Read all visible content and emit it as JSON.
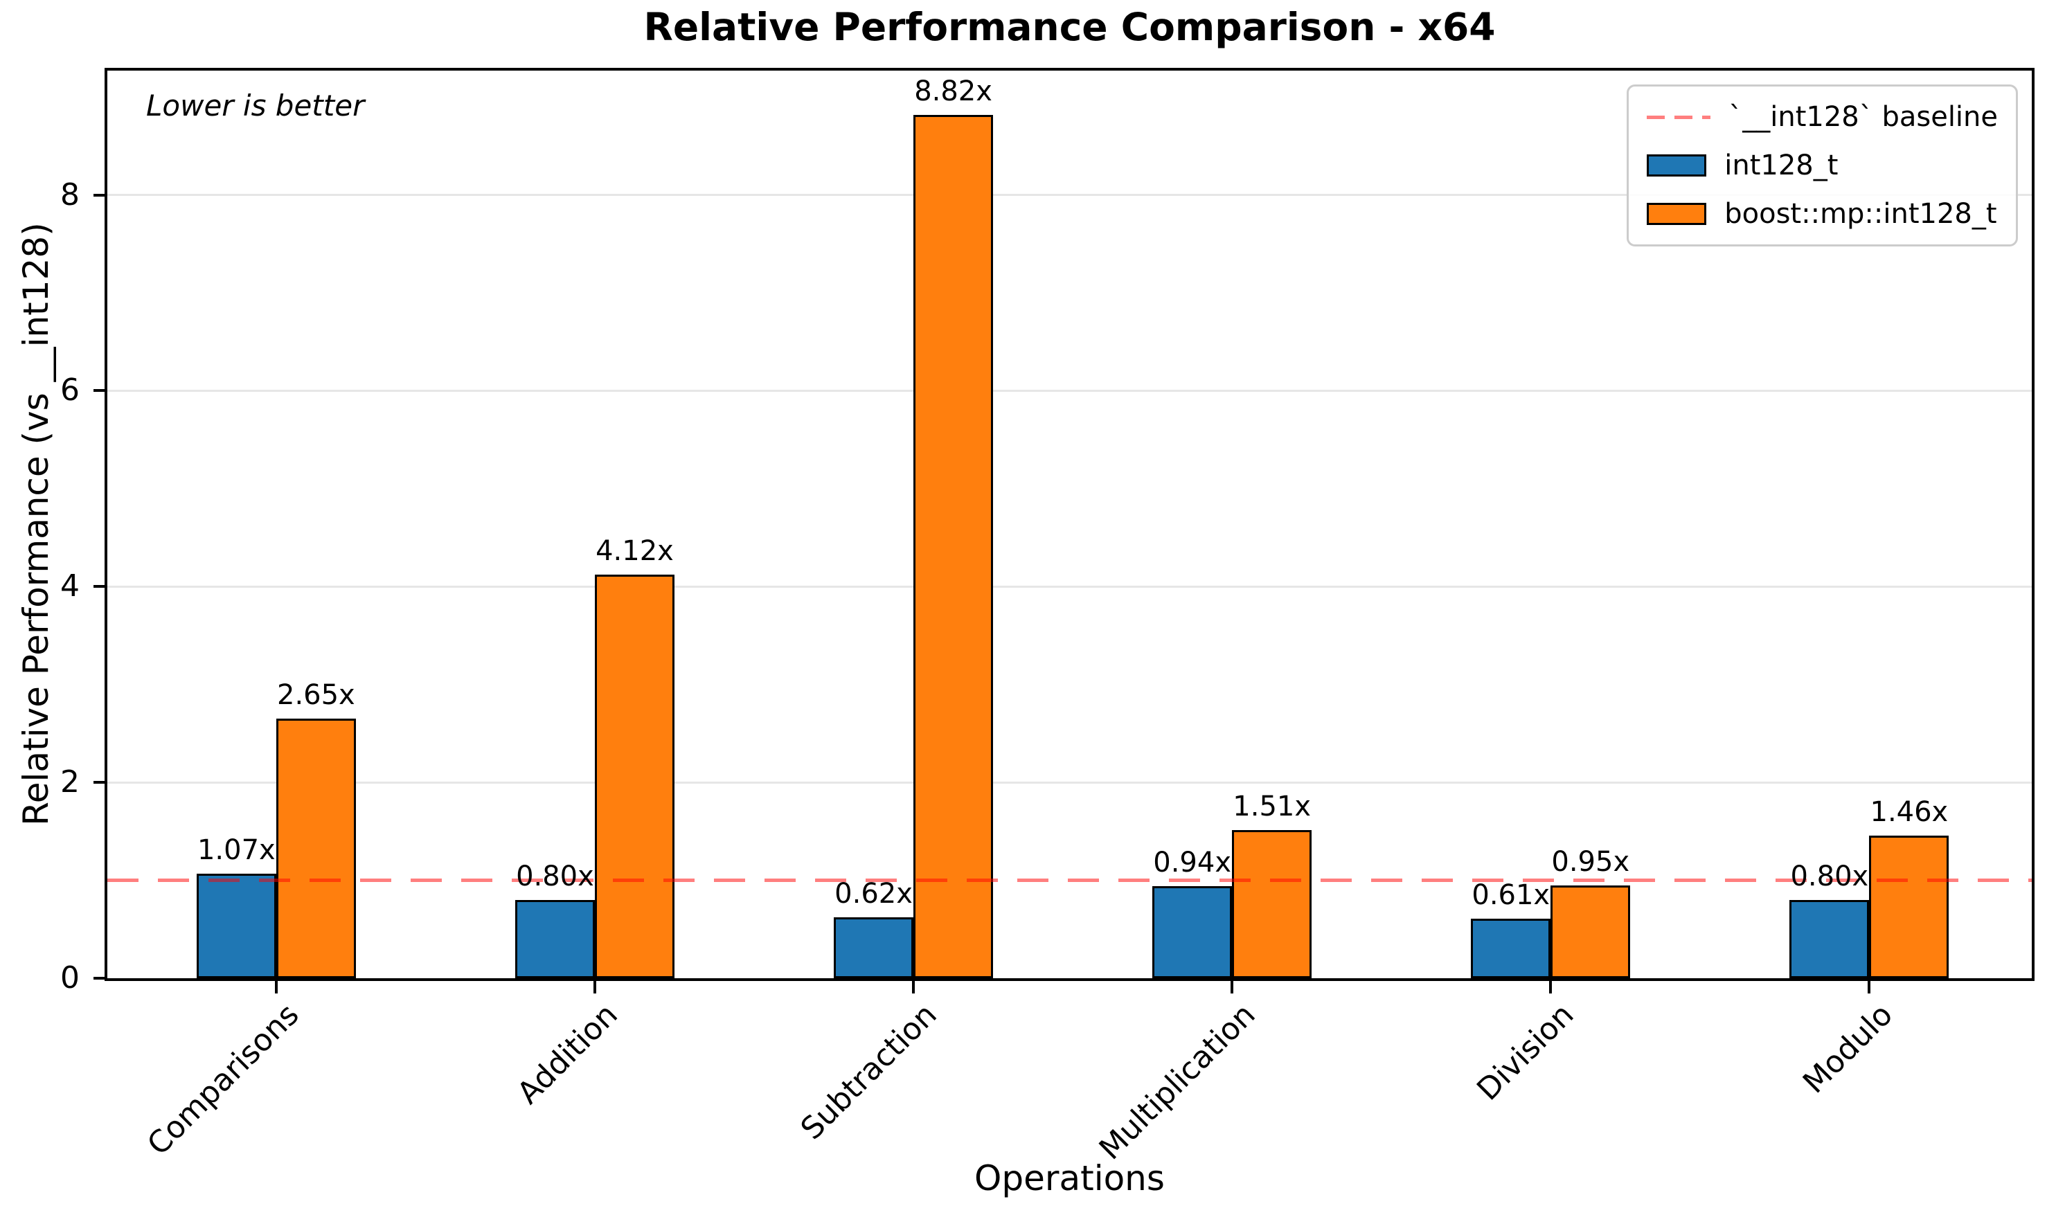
{
  "figure": {
    "title": "Relative Performance Comparison - x64",
    "xlabel": "Operations",
    "ylabel": "Relative Performance (vs __int128)",
    "annotation": "Lower is better"
  },
  "colors": {
    "series1": "#1f77b4",
    "series2": "#ff7f0e",
    "baseline": "#ff0000",
    "grid": "#e6e6e6",
    "bar_edge": "#000000",
    "legend_border": "#cccccc"
  },
  "chart_data": {
    "type": "bar",
    "title": "Relative Performance Comparison - x64",
    "xlabel": "Operations",
    "ylabel": "Relative Performance (vs __int128)",
    "annotation": "Lower is better",
    "categories": [
      "Comparisons",
      "Addition",
      "Subtraction",
      "Multiplication",
      "Division",
      "Modulo"
    ],
    "series": [
      {
        "name": "int128_t",
        "color": "#1f77b4",
        "values": [
          1.07,
          0.8,
          0.62,
          0.94,
          0.61,
          0.8
        ],
        "labels": [
          "1.07x",
          "0.80x",
          "0.62x",
          "0.94x",
          "0.61x",
          "0.80x"
        ]
      },
      {
        "name": "boost::mp::int128_t",
        "color": "#ff7f0e",
        "values": [
          2.65,
          4.12,
          8.82,
          1.51,
          0.95,
          1.46
        ],
        "labels": [
          "2.65x",
          "4.12x",
          "8.82x",
          "1.51x",
          "0.95x",
          "1.46x"
        ]
      }
    ],
    "baseline": {
      "y": 1.0,
      "label": "`__int128` baseline",
      "color": "#ff0000",
      "alpha": 0.5,
      "style": "dashed"
    },
    "yticks": [
      0,
      2,
      4,
      6,
      8
    ],
    "ylim": [
      0,
      9.27
    ],
    "grid": true,
    "legend_position": "upper right",
    "xtick_rotation": 45
  }
}
